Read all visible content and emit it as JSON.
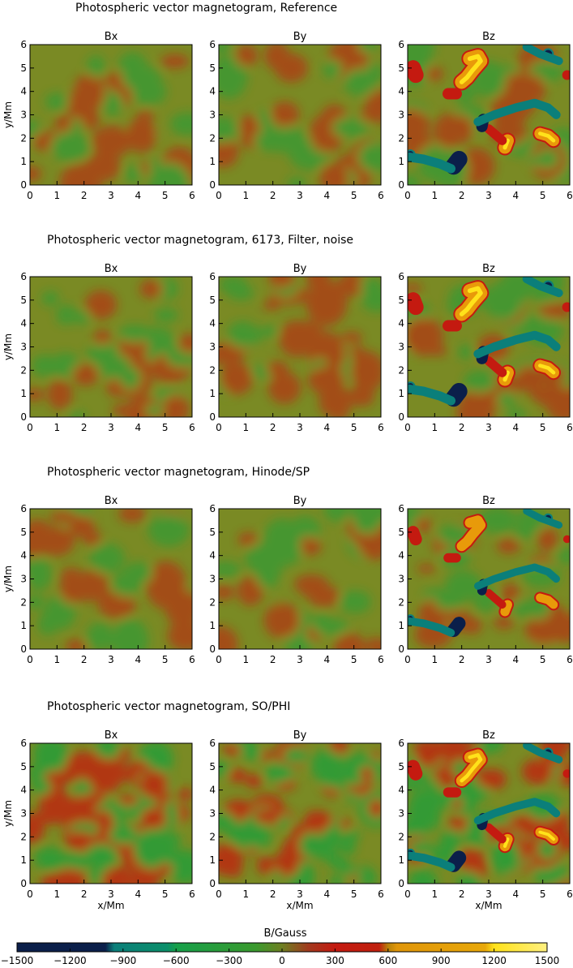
{
  "chart_data": [
    {
      "type": "heatmap",
      "title": "Photospheric vector magnetogram, Reference",
      "panels": [
        "Bx",
        "By",
        "Bz"
      ],
      "ylabel": "y/Mm",
      "xlim": [
        0,
        6
      ],
      "ylim": [
        0,
        6
      ],
      "xticks": [
        0,
        1,
        2,
        3,
        4,
        5,
        6
      ],
      "yticks": [
        0,
        1,
        2,
        3,
        4,
        5,
        6
      ]
    },
    {
      "type": "heatmap",
      "title": "Photospheric vector magnetogram, 6173, Filter, noise",
      "panels": [
        "Bx",
        "By",
        "Bz"
      ],
      "ylabel": "y/Mm",
      "xlim": [
        0,
        6
      ],
      "ylim": [
        0,
        6
      ],
      "xticks": [
        0,
        1,
        2,
        3,
        4,
        5,
        6
      ],
      "yticks": [
        0,
        1,
        2,
        3,
        4,
        5,
        6
      ]
    },
    {
      "type": "heatmap",
      "title": "Photospheric vector magnetogram, Hinode/SP",
      "panels": [
        "Bx",
        "By",
        "Bz"
      ],
      "ylabel": "y/Mm",
      "xlim": [
        0,
        6
      ],
      "ylim": [
        0,
        6
      ],
      "xticks": [
        0,
        1,
        2,
        3,
        4,
        5,
        6
      ],
      "yticks": [
        0,
        1,
        2,
        3,
        4,
        5,
        6
      ]
    },
    {
      "type": "heatmap",
      "title": "Photospheric vector magnetogram, SO/PHI",
      "panels": [
        "Bx",
        "By",
        "Bz"
      ],
      "xlabel": "x/Mm",
      "ylabel": "y/Mm",
      "xlim": [
        0,
        6
      ],
      "ylim": [
        0,
        6
      ],
      "xticks": [
        0,
        1,
        2,
        3,
        4,
        5,
        6
      ],
      "yticks": [
        0,
        1,
        2,
        3,
        4,
        5,
        6
      ]
    }
  ],
  "colorbar": {
    "label": "B/Gauss",
    "range": [
      -1500,
      1500
    ],
    "ticks": [
      -1500,
      -1200,
      -900,
      -600,
      -300,
      0,
      300,
      600,
      900,
      1200,
      1500
    ],
    "tick_labels": [
      "−1500",
      "−1200",
      "−900",
      "−600",
      "−300",
      "0",
      "300",
      "600",
      "900",
      "1200",
      "1500"
    ],
    "stops": [
      {
        "value": -1500,
        "color": "#0b1f4a"
      },
      {
        "value": -1000,
        "color": "#0b1f4a"
      },
      {
        "value": -950,
        "color": "#0b7f7a"
      },
      {
        "value": -650,
        "color": "#0b8f6a"
      },
      {
        "value": -600,
        "color": "#16a04a"
      },
      {
        "value": -150,
        "color": "#3a9a2e"
      },
      {
        "value": 0,
        "color": "#6e7f22"
      },
      {
        "value": 150,
        "color": "#a23a1e"
      },
      {
        "value": 300,
        "color": "#c41a10"
      },
      {
        "value": 550,
        "color": "#c0200e"
      },
      {
        "value": 600,
        "color": "#b8820a"
      },
      {
        "value": 650,
        "color": "#e0960a"
      },
      {
        "value": 1150,
        "color": "#e8a80a"
      },
      {
        "value": 1200,
        "color": "#ffe21a"
      },
      {
        "value": 1500,
        "color": "#fff080"
      }
    ]
  },
  "colors": {
    "background_field": "#7a8a24",
    "positive": "#c41a10",
    "negative": "#1fa03a",
    "strong_positive": "#e89a0a",
    "very_strong_positive": "#ffe21a",
    "strong_negative": "#0b7f7a",
    "very_strong_negative": "#0b1f4a"
  }
}
